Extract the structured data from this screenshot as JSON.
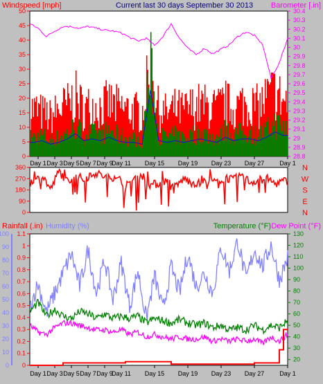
{
  "colors": {
    "background": "#c0c0c0",
    "plot_bg": "#ffffff",
    "frame": "#000000",
    "wind": "#ff0000",
    "gust": "#ff0000",
    "wind_avg": "#008000",
    "avg_line": "#0000ff",
    "barometer": "#ff00ff",
    "direction": "#ff0000",
    "rainfall": "#ff0000",
    "humidity": "#8080ff",
    "temperature": "#008000",
    "dew_point": "#ff00ff",
    "title": "#000080"
  },
  "chart_data": [
    {
      "type": "area",
      "title": "Current last 30 days September 30 2013",
      "ylabel": "Windspeed [mph]",
      "y2label": "Barometer [.in]",
      "x_tick_labels": [
        "Day 1",
        "Day 3",
        "Day 5",
        "Day 7",
        "Day 9",
        "Day 11",
        "Day 15",
        "Day 19",
        "Day 23",
        "Day 27",
        "Day 1"
      ],
      "x_tick_days": [
        1,
        3,
        5,
        7,
        9,
        11,
        15,
        19,
        23,
        27,
        31
      ],
      "xlim": [
        0,
        31
      ],
      "ylim": [
        0,
        50
      ],
      "y_ticks": [
        0,
        5,
        10,
        15,
        20,
        25,
        30,
        35,
        40,
        45,
        50
      ],
      "y2lim": [
        28.8,
        30.4
      ],
      "y2_ticks": [
        "28.8",
        "28.9",
        "29",
        "29.1",
        "29.2",
        "29.3",
        "29.4",
        "29.5",
        "29.6",
        "29.7",
        "29.8",
        "29.9",
        "30",
        "30.1",
        "30.2",
        "30.3",
        "30.4"
      ],
      "grid": false,
      "series": [
        {
          "name": "Windspeed",
          "axis": "left",
          "x": [
            0.5,
            1.5,
            2.5,
            3.5,
            4.5,
            5.5,
            6.5,
            7.5,
            8.5,
            9.5,
            10.5,
            11.5,
            12.5,
            13.5,
            14.5,
            15.5,
            16.5,
            17.5,
            18.5,
            19.5,
            20.5,
            21.5,
            22.5,
            23.5,
            24.5,
            25.5,
            26.5,
            27.5,
            28.5,
            29.5,
            30.5
          ],
          "y": [
            24,
            22,
            20,
            24,
            26,
            30,
            24,
            26,
            25,
            27,
            25,
            24,
            23,
            22,
            45,
            23,
            22,
            24,
            23,
            25,
            26,
            25,
            24,
            27,
            24,
            27,
            26,
            25,
            30,
            33,
            28
          ]
        },
        {
          "name": "Average windspeed",
          "axis": "left",
          "x": [
            0.5,
            1.5,
            2.5,
            3.5,
            4.5,
            5.5,
            6.5,
            7.5,
            8.5,
            9.5,
            10.5,
            11.5,
            12.5,
            13.5,
            14.5,
            15.5,
            16.5,
            17.5,
            18.5,
            19.5,
            20.5,
            21.5,
            22.5,
            23.5,
            24.5,
            25.5,
            26.5,
            27.5,
            28.5,
            29.5,
            30.5
          ],
          "y": [
            8,
            9,
            7,
            8,
            10,
            13,
            9,
            10,
            9,
            11,
            9,
            8,
            8,
            7,
            38,
            9,
            8,
            9,
            8,
            9,
            10,
            9,
            8,
            11,
            9,
            10,
            10,
            9,
            11,
            14,
            12
          ]
        },
        {
          "name": "Barometer",
          "axis": "right",
          "x": [
            0,
            1,
            2,
            3,
            4,
            5,
            6,
            7,
            8,
            9,
            10,
            11,
            12,
            13,
            14,
            15,
            16,
            17,
            18,
            19,
            20,
            21,
            22,
            23,
            24,
            25,
            26,
            27,
            28,
            29,
            30,
            31
          ],
          "y": [
            30.26,
            30.21,
            30.12,
            30.18,
            30.23,
            30.23,
            30.21,
            30.23,
            30.21,
            30.19,
            30.18,
            30.16,
            30.11,
            30.07,
            30.1,
            30.02,
            30.12,
            30.26,
            30.1,
            29.99,
            29.92,
            29.99,
            29.93,
            29.98,
            30.03,
            30.12,
            30.17,
            30.13,
            30.03,
            29.66,
            29.83,
            30.1
          ]
        }
      ]
    },
    {
      "type": "scatter",
      "ylabel": "Wind direction",
      "y_tick_labels": [
        "360",
        "270",
        "180",
        "90",
        "0"
      ],
      "y_ticks": [
        360,
        270,
        180,
        90,
        0
      ],
      "right_labels": [
        "N",
        "W",
        "S",
        "E",
        "N"
      ],
      "xlim": [
        0,
        31
      ],
      "ylim": [
        0,
        360
      ],
      "series": [
        {
          "name": "Wind direction",
          "x": [
            0.5,
            1.5,
            2.5,
            3.5,
            4.5,
            5.5,
            6.5,
            7.5,
            8.5,
            9.5,
            10.5,
            11.5,
            12.5,
            13.5,
            14.5,
            15.5,
            16.5,
            17.5,
            18.5,
            19.5,
            20.5,
            21.5,
            22.5,
            23.5,
            24.5,
            25.5,
            26.5,
            27.5,
            28.5,
            29.5,
            30.5
          ],
          "y": [
            240,
            300,
            180,
            330,
            250,
            300,
            260,
            320,
            300,
            270,
            300,
            180,
            270,
            300,
            220,
            230,
            250,
            200,
            270,
            240,
            230,
            260,
            240,
            280,
            260,
            300,
            240,
            260,
            270,
            230,
            250
          ]
        }
      ]
    },
    {
      "type": "line",
      "ylabel": "Rainfall (.in)",
      "ylabel2": "Humidity (%)",
      "y2label": "Temperature (°F)",
      "y3label": "Dew Point (°F)",
      "x_tick_labels": [
        "Day 1",
        "Day 3",
        "Day 5",
        "Day 7",
        "Day 9",
        "Day 11",
        "Day 15",
        "Day 19",
        "Day 23",
        "Day 27",
        "Day 1"
      ],
      "x_tick_days": [
        1,
        3,
        5,
        7,
        9,
        11,
        15,
        19,
        23,
        27,
        31
      ],
      "xlim": [
        0,
        31
      ],
      "rain_lim": [
        0,
        1.1
      ],
      "rain_ticks": [
        "0",
        "0.1",
        "0.2",
        "0.3",
        "0.4",
        "0.5",
        "0.6",
        "0.7",
        "0.8",
        "0.9",
        "1",
        "1.1"
      ],
      "humidity_lim": [
        0,
        100
      ],
      "humidity_ticks": [
        "0",
        "10",
        "20",
        "30",
        "40",
        "50",
        "60",
        "70",
        "80",
        "90",
        "100"
      ],
      "temp_lim": [
        15,
        130
      ],
      "temp_ticks": [
        "20",
        "30",
        "40",
        "50",
        "60",
        "70",
        "80",
        "90",
        "100",
        "110",
        "120",
        "130"
      ],
      "series": [
        {
          "name": "Rainfall",
          "axis": "rain",
          "x": [
            0,
            4,
            4,
            11.5,
            11.5,
            17,
            17,
            27,
            27,
            30,
            30,
            30.5,
            30.5,
            31
          ],
          "y": [
            0,
            0,
            0.02,
            0.02,
            0.03,
            0.03,
            0.01,
            0.01,
            0.02,
            0.02,
            0.13,
            0.13,
            0.3,
            0.3
          ]
        },
        {
          "name": "Humidity",
          "axis": "humidity",
          "x": [
            0,
            1,
            2,
            3,
            4,
            5,
            6,
            7,
            8,
            9,
            10,
            11,
            12,
            13,
            14,
            15,
            16,
            17,
            18,
            19,
            20,
            21,
            22,
            23,
            24,
            25,
            26,
            27,
            28,
            29,
            30,
            31
          ],
          "y": [
            45,
            62,
            40,
            55,
            70,
            85,
            60,
            88,
            55,
            80,
            50,
            78,
            45,
            72,
            35,
            68,
            42,
            75,
            55,
            85,
            60,
            70,
            55,
            90,
            72,
            95,
            65,
            88,
            75,
            92,
            65,
            82
          ]
        },
        {
          "name": "Temperature",
          "axis": "temp",
          "x": [
            0,
            1,
            2,
            3,
            4,
            5,
            6,
            7,
            8,
            9,
            10,
            11,
            12,
            13,
            14,
            15,
            16,
            17,
            18,
            19,
            20,
            21,
            22,
            23,
            24,
            25,
            26,
            27,
            28,
            29,
            30,
            31
          ],
          "y": [
            62,
            70,
            58,
            64,
            58,
            56,
            62,
            60,
            56,
            60,
            56,
            58,
            56,
            58,
            52,
            56,
            54,
            52,
            55,
            52,
            50,
            52,
            48,
            50,
            46,
            48,
            46,
            50,
            46,
            50,
            48,
            54
          ]
        },
        {
          "name": "Dew Point",
          "axis": "temp",
          "x": [
            0,
            1,
            2,
            3,
            4,
            5,
            6,
            7,
            8,
            9,
            10,
            11,
            12,
            13,
            14,
            15,
            16,
            17,
            18,
            19,
            20,
            21,
            22,
            23,
            24,
            25,
            26,
            27,
            28,
            29,
            30,
            31
          ],
          "y": [
            50,
            44,
            42,
            48,
            52,
            52,
            50,
            48,
            46,
            46,
            44,
            46,
            42,
            44,
            40,
            42,
            40,
            38,
            40,
            38,
            38,
            40,
            36,
            38,
            36,
            38,
            36,
            38,
            34,
            40,
            36,
            42
          ]
        }
      ]
    }
  ]
}
